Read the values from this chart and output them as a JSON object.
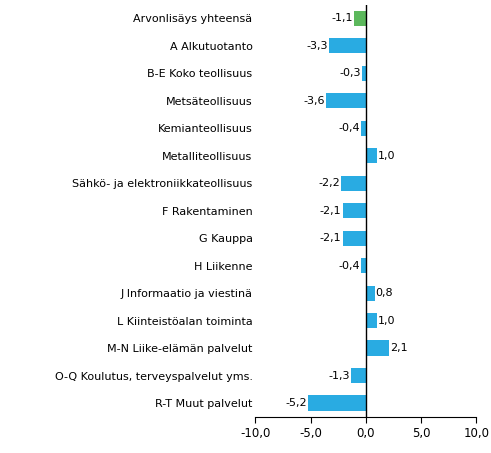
{
  "categories": [
    "Arvonlisäys yhteensä",
    "A Alkutuotanto",
    "B-E Koko teollisuus",
    "Metsäteollisuus",
    "Kemianteollisuus",
    "Metalliteollisuus",
    "Sähkö- ja elektroniikkateollisuus",
    "F Rakentaminen",
    "G Kauppa",
    "H Liikenne",
    "J Informaatio ja viestinä",
    "L Kiinteistöalan toiminta",
    "M-N Liike-elämän palvelut",
    "O-Q Koulutus, terveyspalvelut yms.",
    "R-T Muut palvelut"
  ],
  "values": [
    -1.1,
    -3.3,
    -0.3,
    -3.6,
    -0.4,
    1.0,
    -2.2,
    -2.1,
    -2.1,
    -0.4,
    0.8,
    1.0,
    2.1,
    -1.3,
    -5.2
  ],
  "bar_colors": [
    "#5cb85c",
    "#29abe2",
    "#29abe2",
    "#29abe2",
    "#29abe2",
    "#29abe2",
    "#29abe2",
    "#29abe2",
    "#29abe2",
    "#29abe2",
    "#29abe2",
    "#29abe2",
    "#29abe2",
    "#29abe2",
    "#29abe2"
  ],
  "xlim": [
    -10,
    10
  ],
  "xticks": [
    -10,
    -5,
    0,
    5,
    10
  ],
  "xticklabels": [
    "-10,0",
    "-5,0",
    "0,0",
    "5,0",
    "10,0"
  ],
  "background_color": "#ffffff",
  "label_fontsize": 8.0,
  "value_fontsize": 8.0,
  "tick_fontsize": 8.5,
  "bar_height": 0.55
}
